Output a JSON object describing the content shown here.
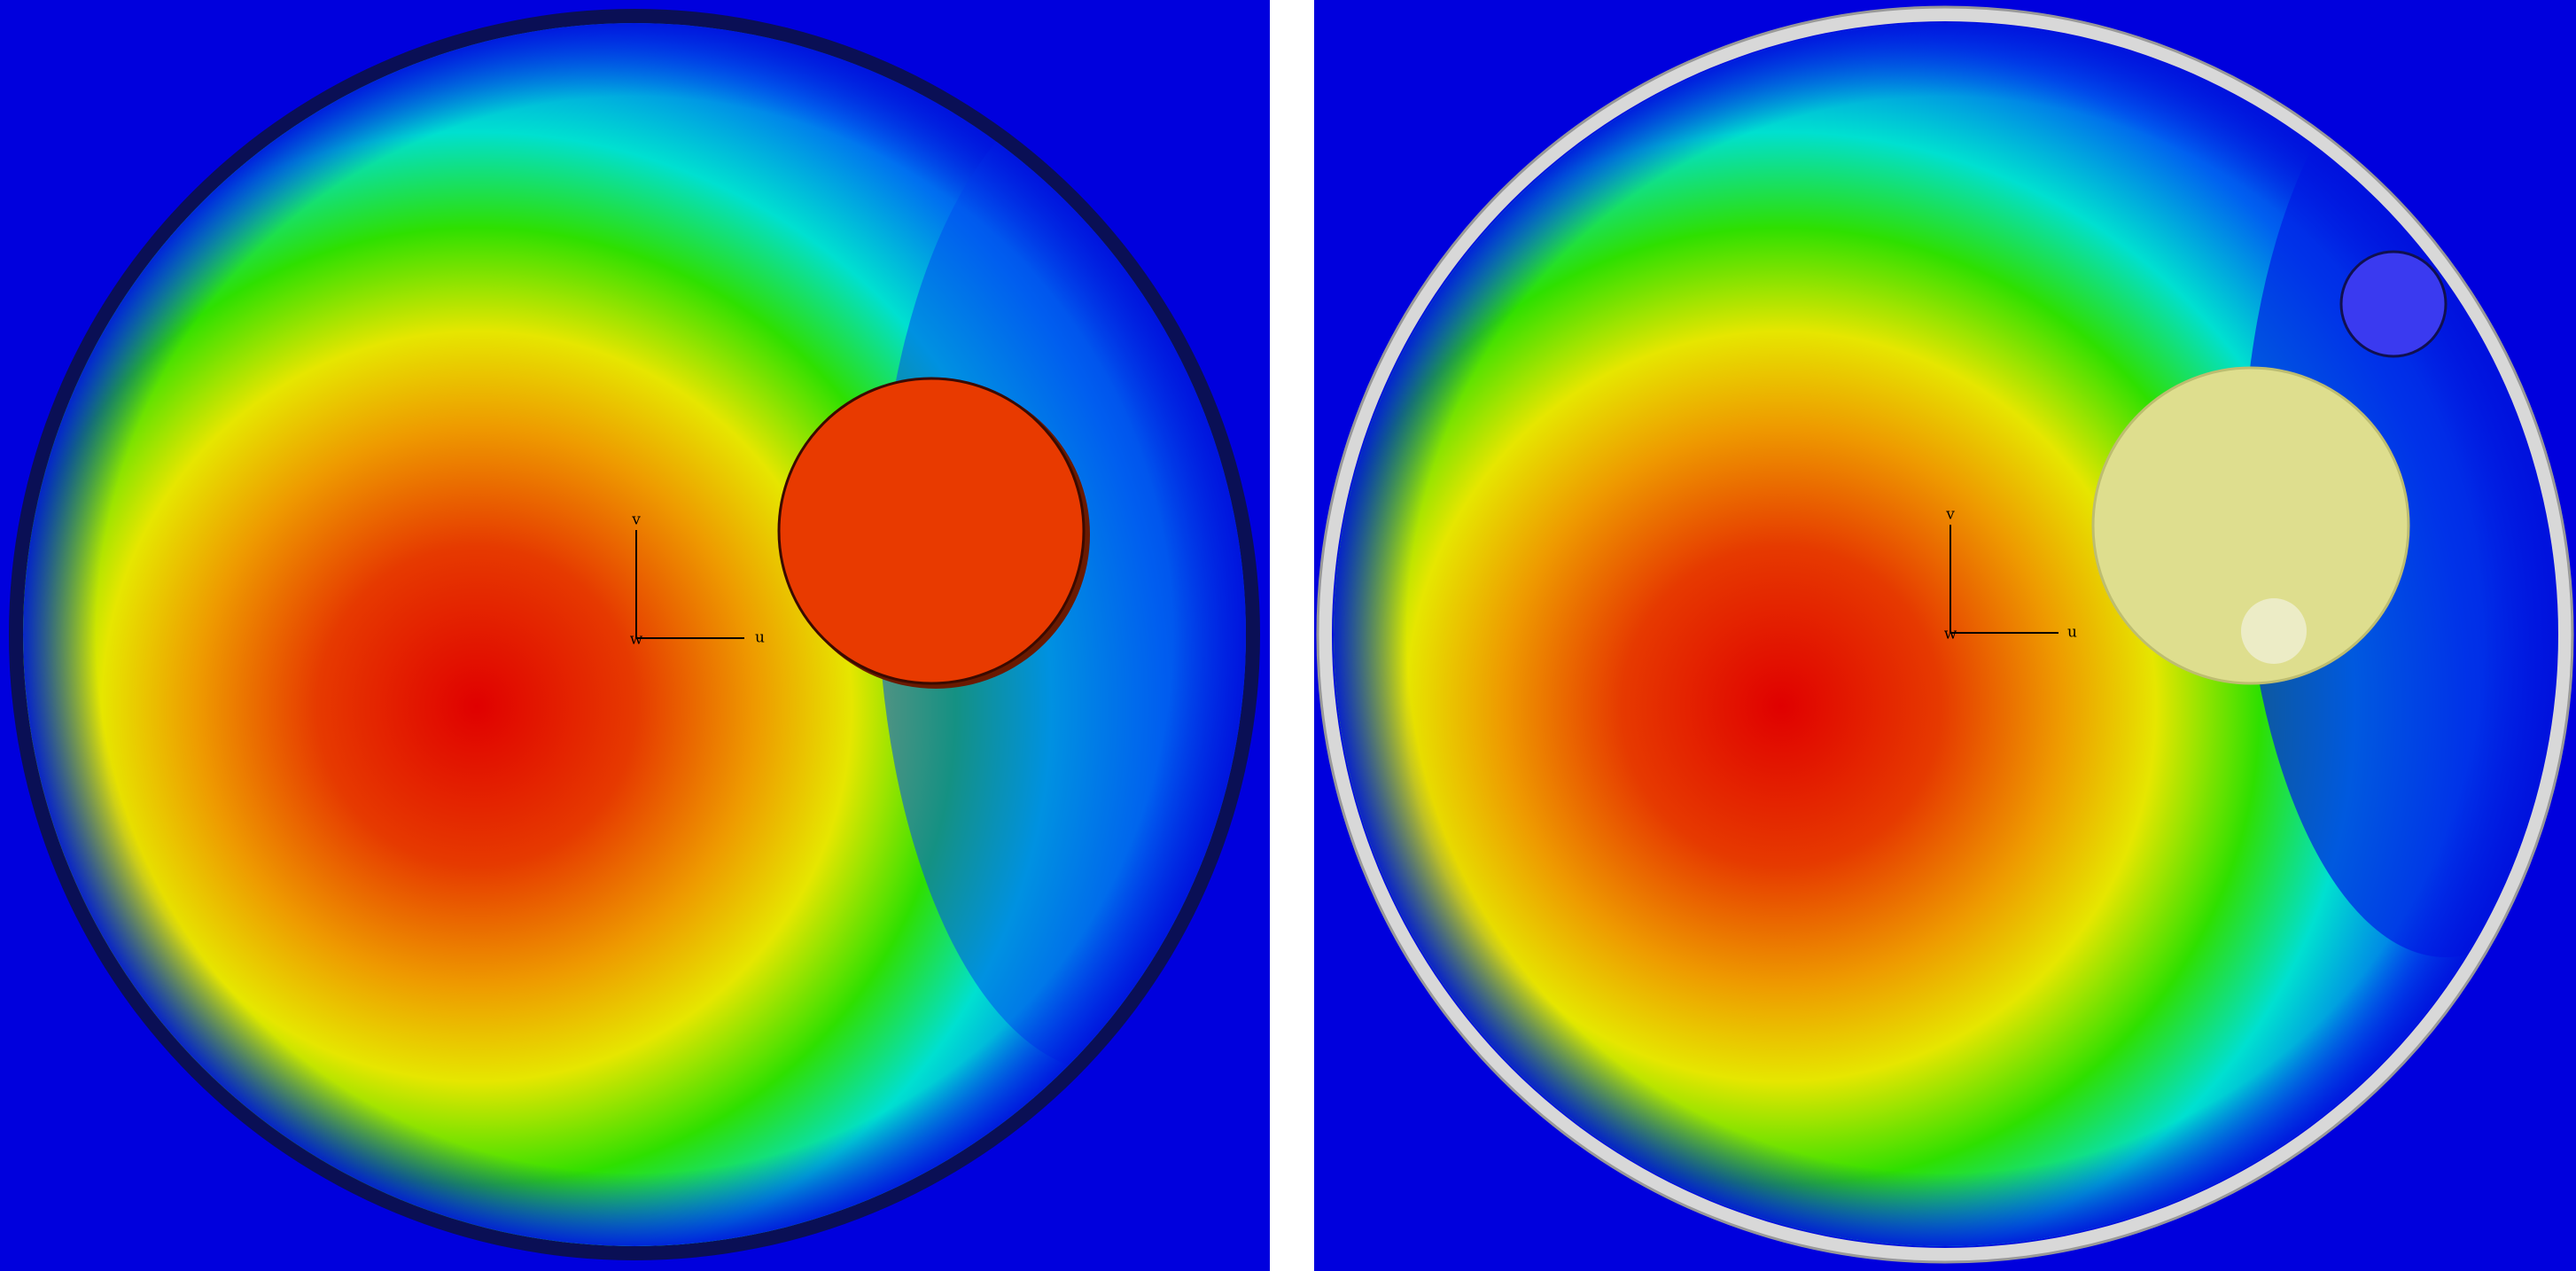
{
  "panels": [
    {
      "axis_labels": {
        "v": "v",
        "u": "u",
        "w": "w"
      }
    },
    {
      "axis_labels": {
        "v": "v",
        "u": "u",
        "w": "w"
      }
    }
  ]
}
